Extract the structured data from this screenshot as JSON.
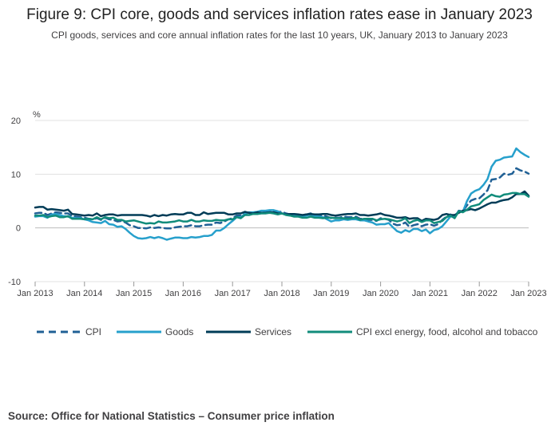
{
  "header": {
    "title": "Figure 9: CPI core, goods and services inflation rates ease in January 2023",
    "subtitle": "CPI goods, services and core annual inflation rates for the last 10 years, UK, January 2013 to January 2023"
  },
  "source": "Source: Office for National Statistics – Consumer price inflation",
  "colors": {
    "cpi": "#206095",
    "goods": "#27a0cc",
    "services": "#003c57",
    "core": "#118c7b",
    "gridline": "#e0e0e0",
    "zeroline": "#bbbbbb",
    "axis_text": "#414042"
  },
  "chart_data": {
    "type": "line",
    "title": "Figure 9: CPI core, goods and services inflation rates ease in January 2023",
    "ylabel": "%",
    "xlabel": "",
    "ylim": [
      -10,
      20
    ],
    "yticks": [
      "20",
      "10",
      "0",
      "-10"
    ],
    "ytick_values": [
      20,
      10,
      0,
      -10
    ],
    "x_start": "Jan 2013",
    "x_end": "Jan 2023",
    "frequency": "monthly",
    "xticks": [
      "Jan 2013",
      "Jan 2014",
      "Jan 2015",
      "Jan 2016",
      "Jan 2017",
      "Jan 2018",
      "Jan 2019",
      "Jan 2020",
      "Jan 2021",
      "Jan 2022",
      "Jan 2023"
    ],
    "legend_position": "bottom",
    "series": [
      {
        "name": "CPI",
        "key": "cpi",
        "style": "dashed",
        "values": [
          2.7,
          2.8,
          2.8,
          2.4,
          2.7,
          2.9,
          2.8,
          2.7,
          2.7,
          2.2,
          2.1,
          2.0,
          1.9,
          1.7,
          1.6,
          1.8,
          1.5,
          1.9,
          1.6,
          1.5,
          1.2,
          1.3,
          1.0,
          0.5,
          0.3,
          0.0,
          0.0,
          -0.1,
          0.1,
          0.0,
          0.1,
          0.0,
          -0.1,
          -0.1,
          0.1,
          0.2,
          0.3,
          0.3,
          0.5,
          0.3,
          0.3,
          0.5,
          0.6,
          0.6,
          1.0,
          0.9,
          1.2,
          1.6,
          1.8,
          2.3,
          2.3,
          2.7,
          2.9,
          2.6,
          2.6,
          2.9,
          3.0,
          3.0,
          3.1,
          3.0,
          3.0,
          2.7,
          2.5,
          2.4,
          2.4,
          2.4,
          2.5,
          2.7,
          2.4,
          2.4,
          2.3,
          2.1,
          1.8,
          1.9,
          1.9,
          2.1,
          2.0,
          2.0,
          2.1,
          1.7,
          1.7,
          1.5,
          1.5,
          1.3,
          1.8,
          1.7,
          1.5,
          0.8,
          0.5,
          0.6,
          1.0,
          0.2,
          0.5,
          0.7,
          0.3,
          0.6,
          0.7,
          0.4,
          0.7,
          1.5,
          2.1,
          2.5,
          2.0,
          3.2,
          3.1,
          4.2,
          5.1,
          5.4,
          5.5,
          6.2,
          7.0,
          9.0,
          9.1,
          9.4,
          10.1,
          9.9,
          10.1,
          11.1,
          10.7,
          10.5,
          10.1
        ]
      },
      {
        "name": "Goods",
        "key": "goods",
        "style": "solid",
        "values": [
          2.1,
          2.2,
          2.2,
          1.9,
          2.5,
          2.6,
          2.4,
          2.2,
          2.1,
          1.9,
          1.8,
          1.8,
          1.6,
          1.4,
          1.1,
          1.0,
          0.9,
          1.3,
          0.7,
          0.6,
          0.2,
          0.3,
          -0.2,
          -0.9,
          -1.5,
          -1.9,
          -2.0,
          -1.9,
          -1.7,
          -1.9,
          -1.7,
          -1.9,
          -2.2,
          -2.0,
          -1.8,
          -1.8,
          -1.9,
          -1.9,
          -1.7,
          -1.8,
          -1.7,
          -1.5,
          -1.5,
          -1.3,
          -0.5,
          -0.5,
          0.0,
          0.7,
          1.3,
          2.0,
          2.0,
          2.6,
          2.9,
          2.9,
          3.0,
          3.2,
          3.2,
          3.3,
          3.3,
          3.1,
          2.7,
          2.5,
          2.4,
          2.3,
          2.2,
          2.2,
          2.3,
          2.5,
          2.2,
          2.1,
          2.0,
          1.6,
          1.2,
          1.4,
          1.4,
          1.6,
          1.5,
          1.6,
          1.6,
          1.4,
          1.4,
          1.2,
          1.0,
          0.6,
          0.7,
          0.7,
          0.9,
          0.1,
          -0.6,
          -0.9,
          -0.4,
          -0.7,
          -0.2,
          -0.2,
          -0.6,
          -0.3,
          -1.0,
          -0.4,
          -0.2,
          0.3,
          1.2,
          2.1,
          2.2,
          3.1,
          3.0,
          5.0,
          6.4,
          6.9,
          7.2,
          8.0,
          9.1,
          11.4,
          12.5,
          12.7,
          13.1,
          13.2,
          13.3,
          14.8,
          14.1,
          13.6,
          13.2
        ]
      },
      {
        "name": "Services",
        "key": "services",
        "style": "solid",
        "values": [
          3.8,
          3.9,
          3.9,
          3.4,
          3.5,
          3.4,
          3.3,
          3.2,
          3.4,
          2.6,
          2.5,
          2.4,
          2.3,
          2.4,
          2.3,
          2.7,
          2.2,
          2.4,
          2.5,
          2.5,
          2.3,
          2.4,
          2.4,
          2.4,
          2.4,
          2.4,
          2.4,
          2.3,
          2.1,
          2.4,
          2.2,
          2.4,
          2.3,
          2.5,
          2.6,
          2.5,
          2.5,
          2.8,
          2.8,
          2.4,
          2.4,
          2.9,
          2.6,
          2.7,
          2.8,
          2.8,
          2.8,
          2.5,
          2.5,
          2.7,
          2.7,
          3.0,
          2.8,
          2.7,
          2.9,
          2.8,
          2.8,
          2.9,
          2.9,
          2.7,
          2.7,
          2.5,
          2.6,
          2.6,
          2.5,
          2.4,
          2.5,
          2.6,
          2.5,
          2.5,
          2.6,
          2.6,
          2.4,
          2.3,
          2.4,
          2.5,
          2.6,
          2.6,
          2.7,
          2.4,
          2.4,
          2.3,
          2.4,
          2.5,
          2.7,
          2.4,
          2.3,
          2.1,
          1.9,
          1.9,
          2.0,
          1.7,
          1.8,
          1.8,
          1.3,
          1.7,
          1.6,
          1.5,
          1.7,
          2.4,
          2.6,
          2.4,
          2.4,
          2.8,
          3.2,
          3.3,
          3.5,
          3.3,
          3.6,
          4.0,
          4.4,
          4.7,
          4.7,
          5.0,
          5.2,
          5.3,
          5.7,
          6.3,
          6.3,
          6.8,
          6.0
        ]
      },
      {
        "name": "CPI excl energy, food, alcohol and tobacco",
        "key": "core",
        "style": "solid",
        "values": [
          2.3,
          2.3,
          2.4,
          2.0,
          2.2,
          2.3,
          2.0,
          2.0,
          2.2,
          1.7,
          1.7,
          1.7,
          1.6,
          1.7,
          1.6,
          2.0,
          1.6,
          2.0,
          1.8,
          1.9,
          1.5,
          1.5,
          1.2,
          1.3,
          1.4,
          1.2,
          1.0,
          0.8,
          0.9,
          0.8,
          1.2,
          1.0,
          1.0,
          1.1,
          1.2,
          1.4,
          1.2,
          1.2,
          1.5,
          1.2,
          1.2,
          1.4,
          1.3,
          1.3,
          1.5,
          1.4,
          1.4,
          1.6,
          1.6,
          2.0,
          1.8,
          2.4,
          2.4,
          2.6,
          2.6,
          2.7,
          2.7,
          2.8,
          2.7,
          2.5,
          2.7,
          2.4,
          2.3,
          2.1,
          2.1,
          1.9,
          1.9,
          2.1,
          1.9,
          1.9,
          1.8,
          1.9,
          1.9,
          1.8,
          1.8,
          1.8,
          1.7,
          1.8,
          1.9,
          1.5,
          1.7,
          1.7,
          1.7,
          1.4,
          1.6,
          1.7,
          1.6,
          1.4,
          1.2,
          1.4,
          1.8,
          0.9,
          1.3,
          1.5,
          1.1,
          1.4,
          1.4,
          0.9,
          1.1,
          1.3,
          2.0,
          2.3,
          1.8,
          3.1,
          2.9,
          3.4,
          4.0,
          4.2,
          4.4,
          5.2,
          5.7,
          6.2,
          5.9,
          5.8,
          6.2,
          6.3,
          6.5,
          6.5,
          6.3,
          6.3,
          5.8
        ]
      }
    ]
  }
}
